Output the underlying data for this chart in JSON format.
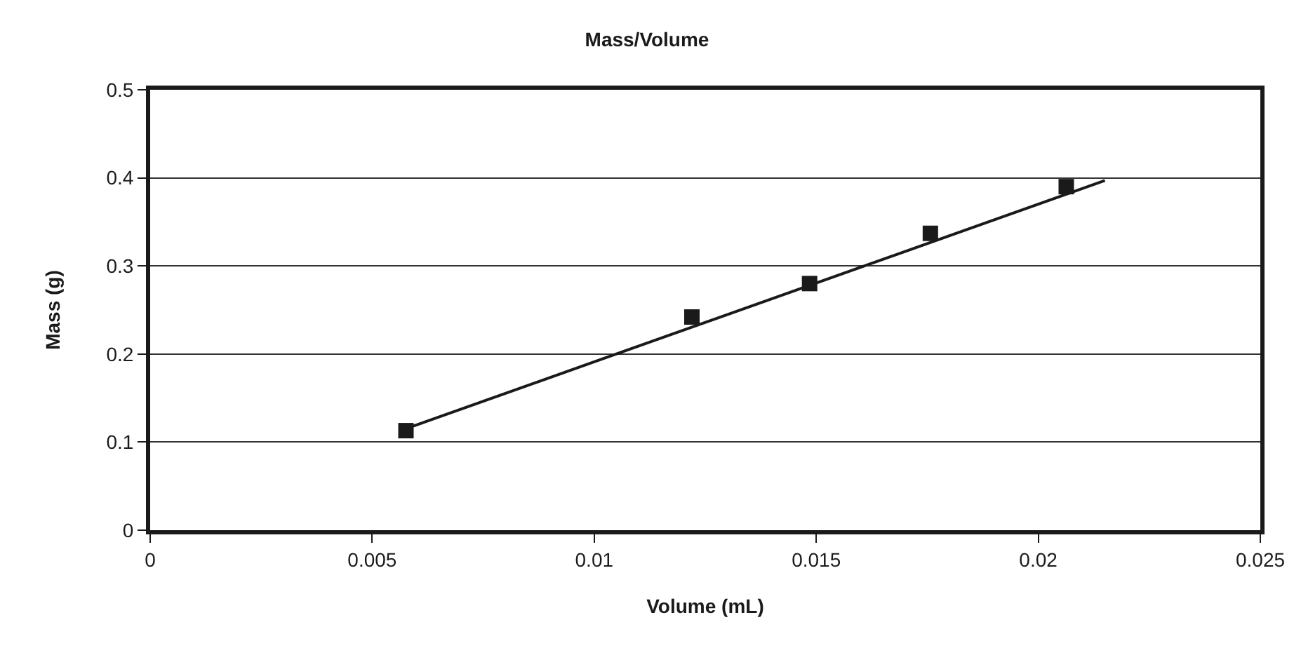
{
  "chart_data": {
    "type": "scatter",
    "title": "Mass/Volume",
    "xlabel": "Volume (mL)",
    "ylabel": "Mass (g)",
    "xlim": [
      0,
      0.025
    ],
    "xticks": [
      0,
      0.005,
      0.01,
      0.015,
      0.02,
      0.025
    ],
    "ylim": [
      0,
      0.5
    ],
    "yticks": [
      0,
      0.1,
      0.2,
      0.3,
      0.4,
      0.5
    ],
    "grid": "y",
    "marker": "square",
    "series": [
      {
        "type": "scatter",
        "color": "#1a1a1a",
        "x": [
          0.00576,
          0.0122,
          0.01485,
          0.01757,
          0.02063
        ],
        "values": [
          0.113,
          0.242,
          0.28,
          0.337,
          0.39
        ]
      },
      {
        "type": "line",
        "color": "#1a1a1a",
        "marker": "none",
        "line_style": "solid",
        "x": [
          0.0058,
          0.0215
        ],
        "values": [
          0.116,
          0.397
        ]
      }
    ]
  }
}
